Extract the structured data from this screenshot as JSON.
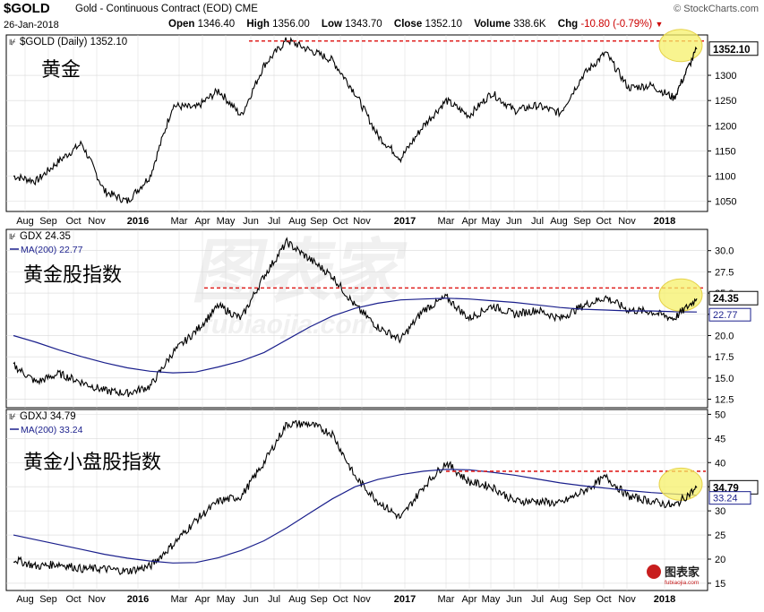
{
  "header": {
    "symbol": "$GOLD",
    "name": "Gold - Continuous Contract (EOD)  CME",
    "brand": "© StockCharts.com",
    "date": "26-Jan-2018",
    "open_label": "Open",
    "open": "1346.40",
    "high_label": "High",
    "high": "1356.00",
    "low_label": "Low",
    "low": "1343.70",
    "close_label": "Close",
    "close": "1352.10",
    "volume_label": "Volume",
    "volume": "338.6K",
    "chg_label": "Chg",
    "chg": "-10.80 (-0.79%)"
  },
  "watermark": {
    "text": "图表家",
    "subtext": "fubiaojia.com"
  },
  "logo": {
    "text": "图表家",
    "sub": "fubiaojia.com"
  },
  "x_axis": {
    "labels": [
      "Aug",
      "Sep",
      "Oct",
      "Nov",
      "2016",
      "Mar",
      "Apr",
      "May",
      "Jun",
      "Jul",
      "Aug",
      "Sep",
      "Oct",
      "Nov",
      "2017",
      "Mar",
      "Apr",
      "May",
      "Jun",
      "Jul",
      "Aug",
      "Sep",
      "Oct",
      "Nov",
      "2018"
    ],
    "bold": [
      "2016",
      "2017",
      "2018"
    ]
  },
  "chart_data": [
    {
      "type": "line",
      "legend": "$GOLD (Daily) 1352.10",
      "annotation": "黄金",
      "last_value_label": "1352.10",
      "ylim": [
        1030,
        1380
      ],
      "yticks": [
        1050,
        1100,
        1150,
        1200,
        1250,
        1300
      ],
      "resistance": 1368,
      "x": [
        "2015-07",
        "2015-08",
        "2015-09",
        "2015-10",
        "2015-11",
        "2015-12",
        "2016-01",
        "2016-02",
        "2016-03",
        "2016-04",
        "2016-05",
        "2016-06",
        "2016-07",
        "2016-08",
        "2016-09",
        "2016-10",
        "2016-11",
        "2016-12",
        "2017-01",
        "2017-02",
        "2017-03",
        "2017-04",
        "2017-05",
        "2017-06",
        "2017-07",
        "2017-08",
        "2017-09",
        "2017-10",
        "2017-11",
        "2017-12",
        "2018-01"
      ],
      "series": [
        {
          "values": [
            1100,
            1090,
            1130,
            1165,
            1070,
            1050,
            1100,
            1240,
            1235,
            1270,
            1220,
            1320,
            1370,
            1350,
            1330,
            1265,
            1180,
            1135,
            1200,
            1250,
            1220,
            1265,
            1230,
            1240,
            1225,
            1300,
            1345,
            1275,
            1280,
            1255,
            1352
          ]
        }
      ]
    },
    {
      "type": "line",
      "legend": "GDX 24.35",
      "ma_legend": "MA(200) 22.77",
      "annotation": "黄金股指数",
      "last_value_label": "24.35",
      "ma_value_label": "22.77",
      "ylim": [
        11.5,
        32.5
      ],
      "yticks": [
        12.5,
        15.0,
        17.5,
        20.0,
        22.5,
        25.0,
        27.5,
        30.0
      ],
      "resistance": 25.6,
      "x": [
        "2015-07",
        "2015-08",
        "2015-09",
        "2015-10",
        "2015-11",
        "2015-12",
        "2016-01",
        "2016-02",
        "2016-03",
        "2016-04",
        "2016-05",
        "2016-06",
        "2016-07",
        "2016-08",
        "2016-09",
        "2016-10",
        "2016-11",
        "2016-12",
        "2017-01",
        "2017-02",
        "2017-03",
        "2017-04",
        "2017-05",
        "2017-06",
        "2017-07",
        "2017-08",
        "2017-09",
        "2017-10",
        "2017-11",
        "2017-12",
        "2018-01"
      ],
      "series": [
        {
          "values": [
            16.5,
            14.5,
            15.5,
            14.5,
            13.5,
            13.2,
            14.0,
            18.0,
            20.5,
            23.5,
            22.0,
            27.0,
            31.0,
            29.0,
            27.0,
            23.5,
            21.0,
            19.5,
            23.0,
            24.5,
            22.0,
            23.5,
            22.5,
            23.0,
            22.0,
            23.5,
            24.5,
            23.0,
            22.8,
            22.0,
            24.35
          ]
        },
        {
          "name": "MA(200)",
          "values": [
            20.0,
            19.2,
            18.3,
            17.5,
            16.8,
            16.2,
            15.8,
            15.6,
            15.7,
            16.3,
            17.0,
            18.0,
            19.5,
            21.0,
            22.3,
            23.2,
            23.8,
            24.2,
            24.3,
            24.4,
            24.3,
            24.1,
            23.9,
            23.6,
            23.3,
            23.1,
            23.0,
            22.9,
            22.9,
            22.8,
            22.77
          ]
        }
      ]
    },
    {
      "type": "line",
      "legend": "GDXJ 34.79",
      "ma_legend": "MA(200) 33.24",
      "annotation": "黄金小盘股指数",
      "last_value_label": "34.79",
      "ma_value_label": "33.24",
      "ylim": [
        13.5,
        51
      ],
      "yticks": [
        15,
        20,
        25,
        30,
        35,
        40,
        45,
        50
      ],
      "resistance": 38.2,
      "x": [
        "2015-07",
        "2015-08",
        "2015-09",
        "2015-10",
        "2015-11",
        "2015-12",
        "2016-01",
        "2016-02",
        "2016-03",
        "2016-04",
        "2016-05",
        "2016-06",
        "2016-07",
        "2016-08",
        "2016-09",
        "2016-10",
        "2016-11",
        "2016-12",
        "2017-01",
        "2017-02",
        "2017-03",
        "2017-04",
        "2017-05",
        "2017-06",
        "2017-07",
        "2017-08",
        "2017-09",
        "2017-10",
        "2017-11",
        "2017-12",
        "2018-01"
      ],
      "series": [
        {
          "values": [
            20.0,
            18.5,
            19.0,
            18.0,
            18.0,
            17.5,
            18.5,
            23.0,
            28.0,
            32.0,
            33.0,
            40.0,
            48.0,
            48.0,
            46.0,
            37.0,
            32.0,
            28.5,
            35.0,
            40.0,
            36.0,
            35.0,
            32.0,
            32.0,
            31.5,
            34.0,
            37.0,
            33.0,
            32.0,
            31.0,
            34.79
          ]
        },
        {
          "name": "MA(200)",
          "values": [
            25.0,
            24.0,
            23.0,
            22.0,
            21.0,
            20.2,
            19.6,
            19.2,
            19.3,
            20.3,
            21.8,
            23.8,
            26.5,
            29.5,
            32.5,
            35.0,
            36.5,
            37.5,
            38.2,
            38.6,
            38.5,
            38.0,
            37.4,
            36.6,
            35.8,
            35.2,
            34.7,
            34.2,
            33.8,
            33.5,
            33.24
          ]
        }
      ]
    }
  ],
  "colors": {
    "price": "#000000",
    "ma": "#1a1f8c",
    "resistance": "#e0201f",
    "highlight_fill": "#f5f06a",
    "highlight_stroke": "#e6d24a",
    "grid": "#d9d9d9",
    "axis": "#000000",
    "chg": "#cc0000"
  }
}
